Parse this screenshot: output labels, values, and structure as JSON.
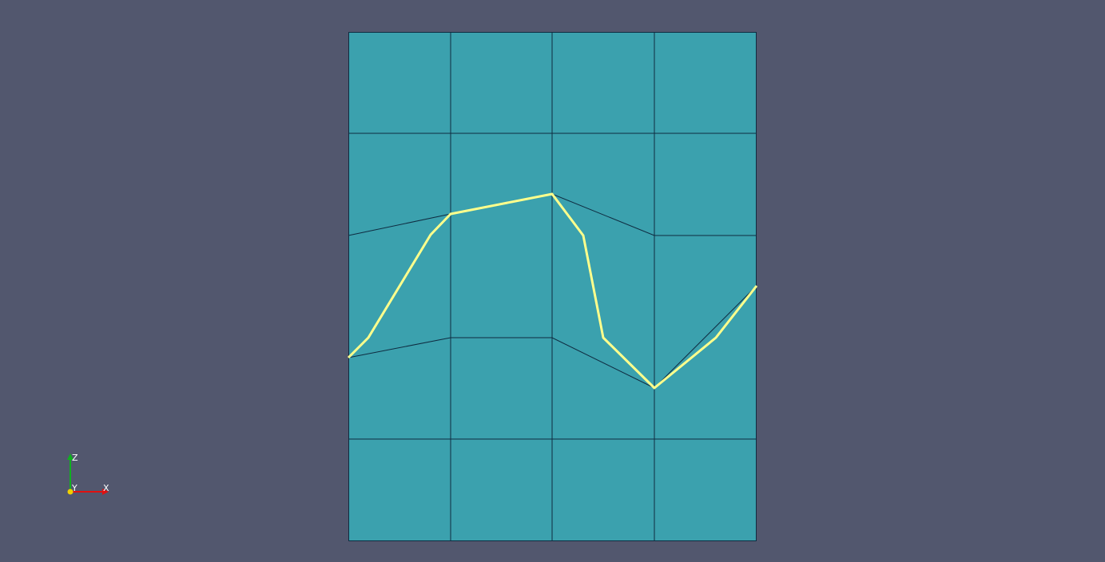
{
  "colors": {
    "background": "#52576e",
    "mesh_fill": "#3ba1ae",
    "mesh_edges": "#0f2b40",
    "curve": "#ffff8c",
    "axis_x": "#e01010",
    "axis_y": "#f0d000",
    "axis_z": "#10b020"
  },
  "orientation_axes": {
    "x_label": "X",
    "y_label": "Y",
    "z_label": "Z"
  }
}
